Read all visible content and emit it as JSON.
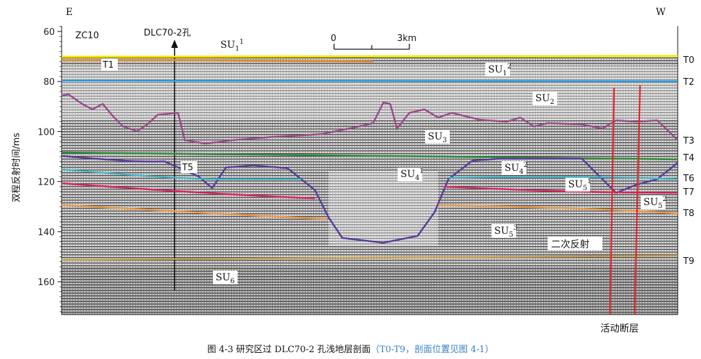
{
  "direction": {
    "left": "E",
    "right": "W"
  },
  "section_name": "ZC10",
  "borehole_label": "DLC70-2孔",
  "scale_bar": {
    "start": "0",
    "end": "3km"
  },
  "y_axis": {
    "label": "双程反射时间/ms",
    "ticks": [
      60,
      80,
      100,
      120,
      140,
      160
    ],
    "range": [
      57,
      172
    ]
  },
  "horizons": [
    {
      "name": "T0",
      "color": "#f2e600"
    },
    {
      "name": "T1",
      "color": "#e08a2a"
    },
    {
      "name": "T2",
      "color": "#2a9be0"
    },
    {
      "name": "T3",
      "color": "#9b4a8a"
    },
    {
      "name": "T4",
      "color": "#2e8b3a"
    },
    {
      "name": "T5",
      "color": "#5a3c9a"
    },
    {
      "name": "T6",
      "color": "#3cb4c8"
    },
    {
      "name": "T7",
      "color": "#d8285a"
    },
    {
      "name": "T8",
      "color": "#e89a4a"
    },
    {
      "name": "T9",
      "color": "#c8a050"
    }
  ],
  "units": [
    {
      "base": "SU",
      "sub": "1",
      "sup": "1"
    },
    {
      "base": "SU",
      "sub": "1",
      "sup": "2"
    },
    {
      "base": "SU",
      "sub": "2",
      "sup": ""
    },
    {
      "base": "SU",
      "sub": "3",
      "sup": ""
    },
    {
      "base": "SU",
      "sub": "4",
      "sup": "1"
    },
    {
      "base": "SU",
      "sub": "4",
      "sup": "2"
    },
    {
      "base": "SU",
      "sub": "5",
      "sup": "1"
    },
    {
      "base": "SU",
      "sub": "5",
      "sup": "2"
    },
    {
      "base": "SU",
      "sub": "5",
      "sup": "3"
    },
    {
      "base": "SU",
      "sub": "6",
      "sup": ""
    }
  ],
  "annotations": {
    "multiple": "二次反射",
    "fault": "活动断层",
    "fault_color": "#e02a2a"
  },
  "caption": {
    "main": "图 4-3 研究区过 DLC70-2 孔浅地层剖面",
    "paren": "（T0-T9，剖面位置见图 4-1）"
  }
}
